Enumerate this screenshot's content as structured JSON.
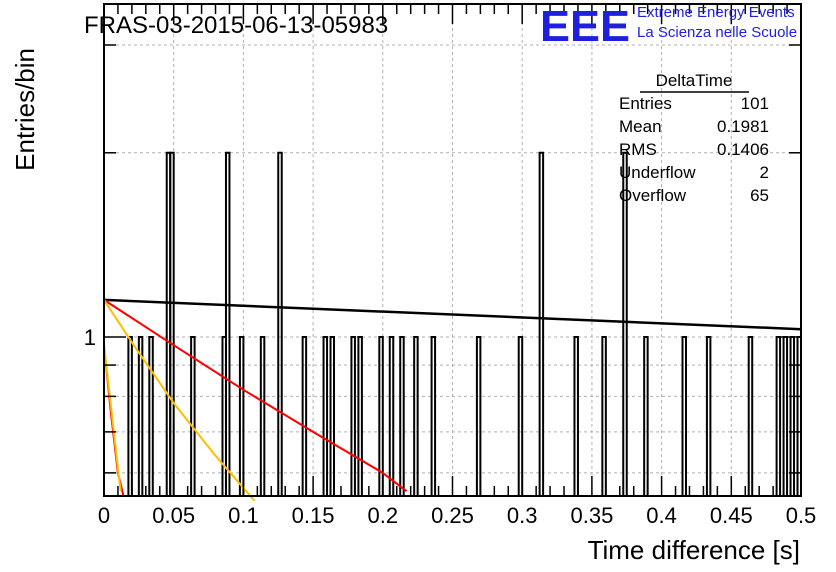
{
  "header": {
    "run_title": "FRAS-03-2015-06-13-05983",
    "logo_text": "EEE",
    "logo_line1": "Extreme Energy Events",
    "logo_line2": "La Scienza nelle Scuole"
  },
  "stats_box": {
    "title": "DeltaTime",
    "rows": [
      {
        "label": "Entries",
        "value": "101"
      },
      {
        "label": "Mean",
        "value": "0.1981"
      },
      {
        "label": "RMS",
        "value": "0.1406"
      },
      {
        "label": "Underflow",
        "value": "2"
      },
      {
        "label": "Overflow",
        "value": "65"
      }
    ]
  },
  "chart_data": {
    "type": "bar",
    "histogram_style": "step-outline",
    "title": "FRAS-03-2015-06-13-05983",
    "xlabel": "Time difference [s]",
    "ylabel": "Entries/bin",
    "xlim": [
      0,
      0.5
    ],
    "ylim": [
      0.55,
      3.5
    ],
    "log_y": true,
    "grid": true,
    "x_ticks": [
      0,
      0.05,
      0.1,
      0.15,
      0.2,
      0.25,
      0.3,
      0.35,
      0.4,
      0.45,
      0.5
    ],
    "x_tick_labels": [
      "0",
      "0.05",
      "0.1",
      "0.15",
      "0.2",
      "0.25",
      "0.3",
      "0.35",
      "0.4",
      "0.45",
      "0.5"
    ],
    "y_tick_labels": [
      {
        "value": 1,
        "label": "1"
      }
    ],
    "bin_width": 0.0025,
    "bins": [
      {
        "x": 0.0175,
        "y": 1
      },
      {
        "x": 0.025,
        "y": 1
      },
      {
        "x": 0.0325,
        "y": 1
      },
      {
        "x": 0.045,
        "y": 2
      },
      {
        "x": 0.0475,
        "y": 2
      },
      {
        "x": 0.0625,
        "y": 1
      },
      {
        "x": 0.085,
        "y": 1
      },
      {
        "x": 0.0875,
        "y": 2
      },
      {
        "x": 0.0975,
        "y": 1
      },
      {
        "x": 0.1125,
        "y": 1
      },
      {
        "x": 0.125,
        "y": 2
      },
      {
        "x": 0.1425,
        "y": 1
      },
      {
        "x": 0.1575,
        "y": 1
      },
      {
        "x": 0.1625,
        "y": 1
      },
      {
        "x": 0.1775,
        "y": 1
      },
      {
        "x": 0.1825,
        "y": 1
      },
      {
        "x": 0.1975,
        "y": 1
      },
      {
        "x": 0.205,
        "y": 1
      },
      {
        "x": 0.2125,
        "y": 1
      },
      {
        "x": 0.2225,
        "y": 1
      },
      {
        "x": 0.235,
        "y": 1
      },
      {
        "x": 0.2675,
        "y": 1
      },
      {
        "x": 0.2975,
        "y": 1
      },
      {
        "x": 0.3125,
        "y": 2
      },
      {
        "x": 0.3375,
        "y": 1
      },
      {
        "x": 0.3575,
        "y": 1
      },
      {
        "x": 0.3725,
        "y": 2
      },
      {
        "x": 0.3875,
        "y": 1
      },
      {
        "x": 0.415,
        "y": 1
      },
      {
        "x": 0.4325,
        "y": 1
      },
      {
        "x": 0.4625,
        "y": 1
      },
      {
        "x": 0.4825,
        "y": 1
      },
      {
        "x": 0.4875,
        "y": 1
      },
      {
        "x": 0.4925,
        "y": 1
      },
      {
        "x": 0.4975,
        "y": 1
      }
    ],
    "series": [
      {
        "color": "#000000",
        "points": [
          [
            0,
            1.15
          ],
          [
            0.5,
            1.03
          ]
        ]
      },
      {
        "color": "#ff0000",
        "points": [
          [
            0,
            1.15
          ],
          [
            0.05,
            0.97
          ],
          [
            0.1,
            0.82
          ],
          [
            0.15,
            0.7
          ],
          [
            0.2,
            0.6
          ],
          [
            0.217,
            0.56
          ]
        ]
      },
      {
        "color": "#ffbf00",
        "points": [
          [
            0,
            1.15
          ],
          [
            0.02,
            0.98
          ],
          [
            0.05,
            0.78
          ],
          [
            0.08,
            0.64
          ],
          [
            0.108,
            0.54
          ]
        ]
      },
      {
        "color": "#ff0000",
        "points": [
          [
            0,
            0.97
          ],
          [
            0.005,
            0.75
          ],
          [
            0.01,
            0.6
          ],
          [
            0.014,
            0.55
          ]
        ]
      },
      {
        "color": "#ffbf00",
        "points": [
          [
            0,
            0.97
          ],
          [
            0.005,
            0.77
          ],
          [
            0.01,
            0.61
          ],
          [
            0.012,
            0.56
          ]
        ]
      }
    ]
  }
}
